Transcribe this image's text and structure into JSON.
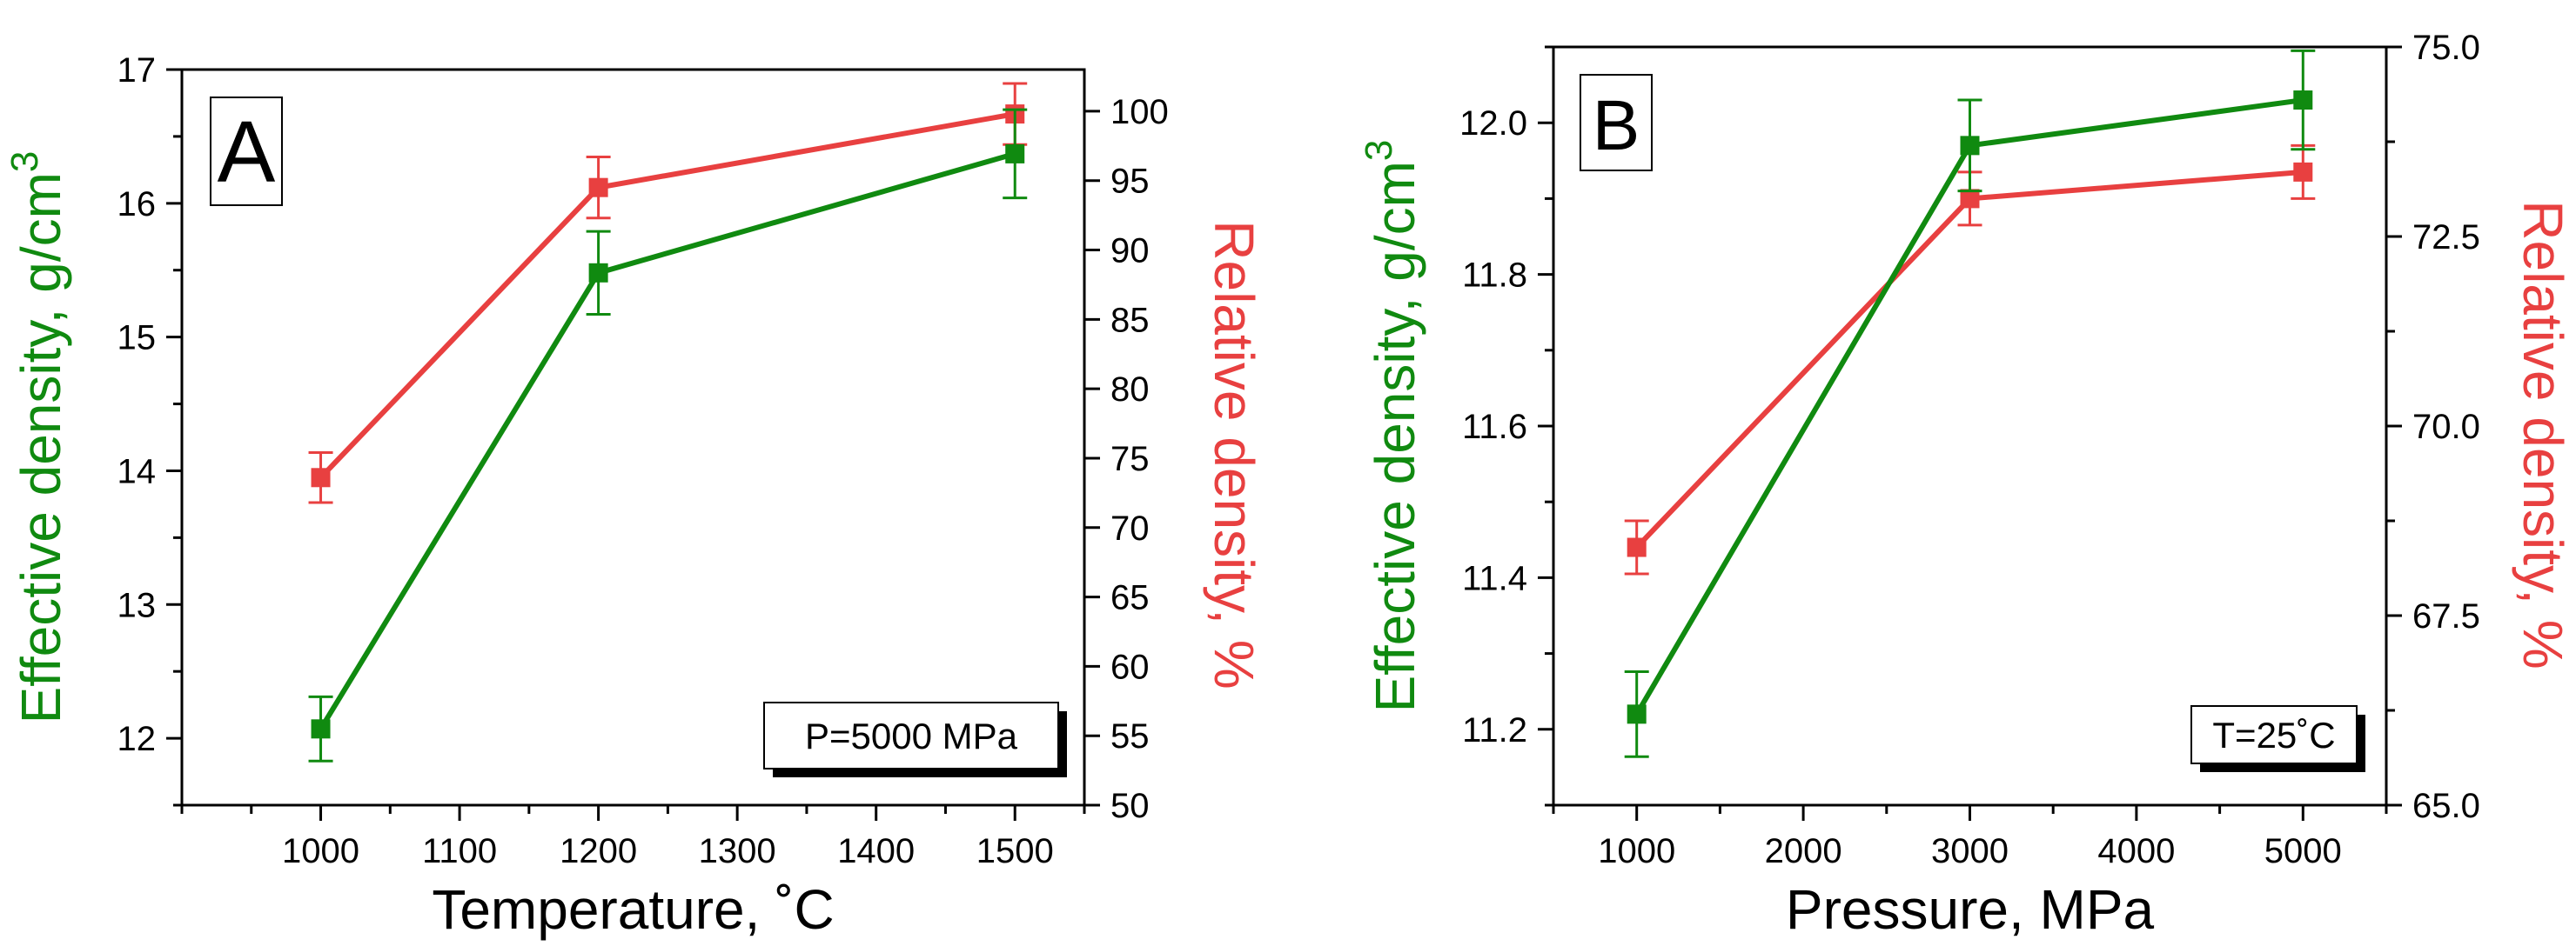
{
  "colors": {
    "effective": "#108a10",
    "relative": "#e84040",
    "axis": "#000000"
  },
  "chart_data": [
    {
      "type": "line",
      "panel_label": "A",
      "annotation": "P=5000 MPa",
      "xlabel": "Temperature, ˚C",
      "ylabel_left": "Effective density, g/cm",
      "ylabel_left_sup": "3",
      "ylabel_right": "Relative density, %",
      "xlim": [
        900,
        1550
      ],
      "xticks": [
        1000,
        1100,
        1200,
        1300,
        1400,
        1500
      ],
      "ylim_left": [
        11.5,
        17
      ],
      "yticks_left": [
        12,
        13,
        14,
        15,
        16,
        17
      ],
      "ylim_right": [
        50,
        103
      ],
      "yticks_right": [
        50,
        55,
        60,
        65,
        70,
        75,
        80,
        85,
        90,
        95,
        100
      ],
      "x": [
        1000,
        1200,
        1500
      ],
      "series": [
        {
          "name": "Effective density",
          "axis": "left",
          "values": [
            12.07,
            15.48,
            16.37
          ],
          "errors": [
            0.24,
            0.31,
            0.33
          ]
        },
        {
          "name": "Relative density",
          "axis": "right",
          "values": [
            73.6,
            94.5,
            99.8
          ],
          "errors": [
            1.8,
            2.2,
            2.2
          ]
        }
      ]
    },
    {
      "type": "line",
      "panel_label": "B",
      "annotation": "T=25˚C",
      "xlabel": "Pressure, MPa",
      "ylabel_left": "Effective density, g/cm",
      "ylabel_left_sup": "3",
      "ylabel_right": "Relative density, %",
      "xlim": [
        500,
        5500
      ],
      "xticks": [
        1000,
        2000,
        3000,
        4000,
        5000
      ],
      "ylim_left": [
        11.1,
        12.1
      ],
      "yticks_left": [
        11.2,
        11.4,
        11.6,
        11.8,
        12.0
      ],
      "ylim_right": [
        65,
        75
      ],
      "yticks_right": [
        "65.0",
        "67.5",
        "70.0",
        "72.5",
        "75.0"
      ],
      "x": [
        1000,
        3000,
        5000
      ],
      "series": [
        {
          "name": "Effective density",
          "axis": "left",
          "values": [
            11.22,
            11.97,
            12.03
          ],
          "errors": [
            0.056,
            0.06,
            0.065
          ]
        },
        {
          "name": "Relative density",
          "axis": "right",
          "values": [
            68.4,
            73.0,
            73.35
          ],
          "errors": [
            0.35,
            0.35,
            0.35
          ]
        }
      ]
    }
  ]
}
